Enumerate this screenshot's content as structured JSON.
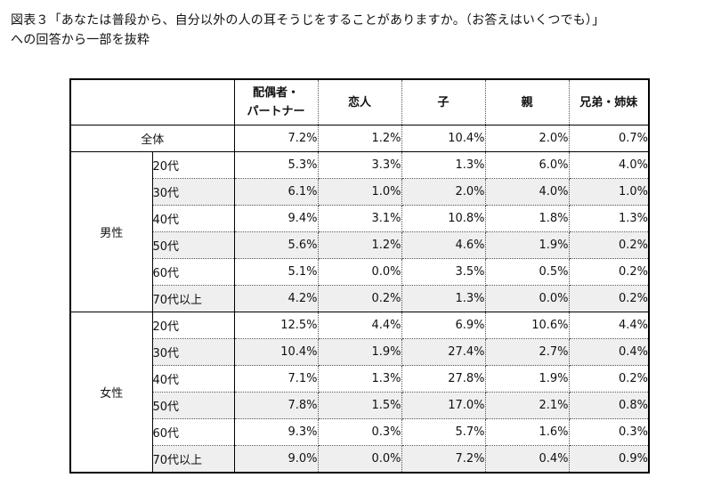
{
  "caption": {
    "line1": "図表３「あなたは普段から、自分以外の人の耳そうじをすることがありますか。（お答えはいくつでも）」",
    "line2": "への回答から一部を抜粋"
  },
  "table": {
    "headers": {
      "spouse_line1": "配偶者・",
      "spouse_line2": "パートナー",
      "lover": "恋人",
      "child": "子",
      "parent": "親",
      "siblings": "兄弟・姉妹"
    },
    "total": {
      "label": "全体",
      "values": [
        "7.2%",
        "1.2%",
        "10.4%",
        "2.0%",
        "0.7%"
      ]
    },
    "groups": [
      {
        "label": "男性",
        "rows": [
          {
            "age": "20代",
            "values": [
              "5.3%",
              "3.3%",
              "1.3%",
              "6.0%",
              "4.0%"
            ]
          },
          {
            "age": "30代",
            "values": [
              "6.1%",
              "1.0%",
              "2.0%",
              "4.0%",
              "1.0%"
            ]
          },
          {
            "age": "40代",
            "values": [
              "9.4%",
              "3.1%",
              "10.8%",
              "1.8%",
              "1.3%"
            ]
          },
          {
            "age": "50代",
            "values": [
              "5.6%",
              "1.2%",
              "4.6%",
              "1.9%",
              "0.2%"
            ]
          },
          {
            "age": "60代",
            "values": [
              "5.1%",
              "0.0%",
              "3.5%",
              "0.5%",
              "0.2%"
            ]
          },
          {
            "age": "70代以上",
            "values": [
              "4.2%",
              "0.2%",
              "1.3%",
              "0.0%",
              "0.2%"
            ]
          }
        ]
      },
      {
        "label": "女性",
        "rows": [
          {
            "age": "20代",
            "values": [
              "12.5%",
              "4.4%",
              "6.9%",
              "10.6%",
              "4.4%"
            ]
          },
          {
            "age": "30代",
            "values": [
              "10.4%",
              "1.9%",
              "27.4%",
              "2.7%",
              "0.4%"
            ]
          },
          {
            "age": "40代",
            "values": [
              "7.1%",
              "1.3%",
              "27.8%",
              "1.9%",
              "0.2%"
            ]
          },
          {
            "age": "50代",
            "values": [
              "7.8%",
              "1.5%",
              "17.0%",
              "2.1%",
              "0.8%"
            ]
          },
          {
            "age": "60代",
            "values": [
              "9.3%",
              "0.3%",
              "5.7%",
              "1.6%",
              "0.3%"
            ]
          },
          {
            "age": "70代以上",
            "values": [
              "9.0%",
              "0.0%",
              "7.2%",
              "0.4%",
              "0.9%"
            ]
          }
        ]
      }
    ]
  }
}
